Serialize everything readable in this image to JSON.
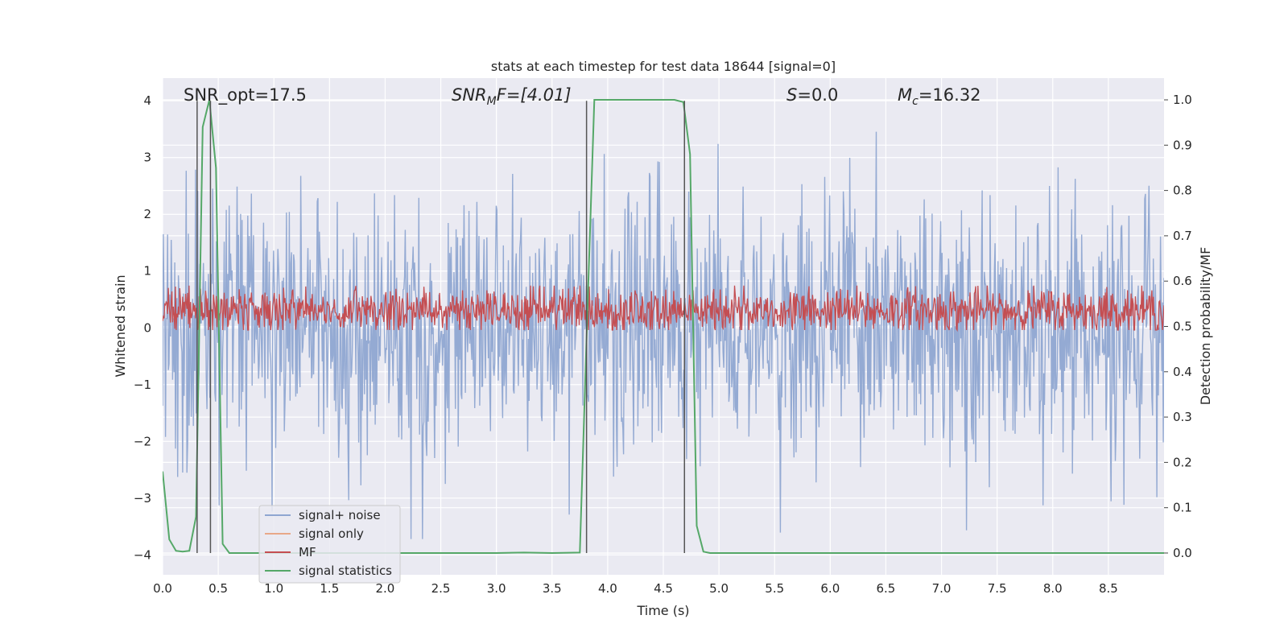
{
  "chart_data": {
    "type": "line",
    "title": "stats at each timestep for test data 18644 [signal=0]",
    "xlabel": "Time (s)",
    "ylabel": "Whitened strain",
    "y2label": "Detection probability/MF",
    "xlim": [
      0.0,
      9.0
    ],
    "ylim": [
      -4.35,
      4.4
    ],
    "y2lim": [
      -0.048,
      1.048
    ],
    "xticks": [
      0.0,
      0.5,
      1.0,
      1.5,
      2.0,
      2.5,
      3.0,
      3.5,
      4.0,
      4.5,
      5.0,
      5.5,
      6.0,
      6.5,
      7.0,
      7.5,
      8.0,
      8.5
    ],
    "xtick_labels": [
      "0.0",
      "0.5",
      "1.0",
      "1.5",
      "2.0",
      "2.5",
      "3.0",
      "3.5",
      "4.0",
      "4.5",
      "5.0",
      "5.5",
      "6.0",
      "6.5",
      "7.0",
      "7.5",
      "8.0",
      "8.5"
    ],
    "yticks": [
      4,
      3,
      2,
      1,
      0,
      -1,
      -2,
      -3,
      -4
    ],
    "ytick_labels": [
      "4",
      "3",
      "2",
      "1",
      "0",
      "−1",
      "−2",
      "−3",
      "−4"
    ],
    "y2ticks": [
      1.0,
      0.9,
      0.8,
      0.7,
      0.6,
      0.5,
      0.4,
      0.3,
      0.2,
      0.1,
      0.0
    ],
    "y2tick_labels": [
      "1.0",
      "0.9",
      "0.8",
      "0.7",
      "0.6",
      "0.5",
      "0.4",
      "0.3",
      "0.2",
      "0.1",
      "0.0"
    ],
    "grid": true,
    "legend_position": "lower-left",
    "annotations": {
      "snr_opt": "SNR_opt=17.5",
      "snr_mf_name": "SNR",
      "snr_mf_sub": "M",
      "snr_mf_after": "F=[4.01]",
      "s_name": "S",
      "s_value": "=0.0",
      "mc_name": "M",
      "mc_sub": "c",
      "mc_value": "=16.32"
    },
    "vertical_markers_s": [
      0.31,
      0.43,
      3.81,
      4.69
    ],
    "series": [
      {
        "name": "signal+ noise",
        "color": "#8fa6d1",
        "axis": "left",
        "kind": "noise",
        "x_range": [
          0.0,
          9.0
        ],
        "samples": 1400,
        "std": 1.0,
        "max": 3.98,
        "min": -3.72
      },
      {
        "name": "signal only",
        "color": "#e8a888",
        "axis": "left",
        "kind": "flat",
        "values": []
      },
      {
        "name": "MF",
        "color": "#c44e52",
        "axis": "right",
        "kind": "noise",
        "x_range": [
          0.0,
          9.0
        ],
        "samples": 1400,
        "mean": 0.535,
        "std": 0.025,
        "max": 0.59,
        "min": 0.492
      },
      {
        "name": "signal statistics",
        "color": "#55a868",
        "axis": "right",
        "kind": "line",
        "x": [
          0.0,
          0.06,
          0.12,
          0.18,
          0.24,
          0.3,
          0.36,
          0.42,
          0.48,
          0.54,
          0.6,
          0.66,
          1.0,
          2.0,
          3.0,
          3.25,
          3.5,
          3.75,
          3.82,
          3.88,
          4.0,
          4.5,
          4.6,
          4.68,
          4.74,
          4.8,
          4.86,
          4.92,
          5.0,
          6.0,
          7.0,
          8.0,
          9.0
        ],
        "y": [
          0.18,
          0.03,
          0.005,
          0.003,
          0.005,
          0.08,
          0.94,
          1.0,
          0.85,
          0.02,
          0.0,
          0.0,
          0.0,
          0.0,
          0.0,
          0.001,
          0.0,
          0.001,
          0.55,
          1.0,
          1.0,
          1.0,
          1.0,
          0.995,
          0.88,
          0.06,
          0.003,
          0.0,
          0.0,
          0.0,
          0.0,
          0.0,
          0.0
        ]
      }
    ]
  }
}
